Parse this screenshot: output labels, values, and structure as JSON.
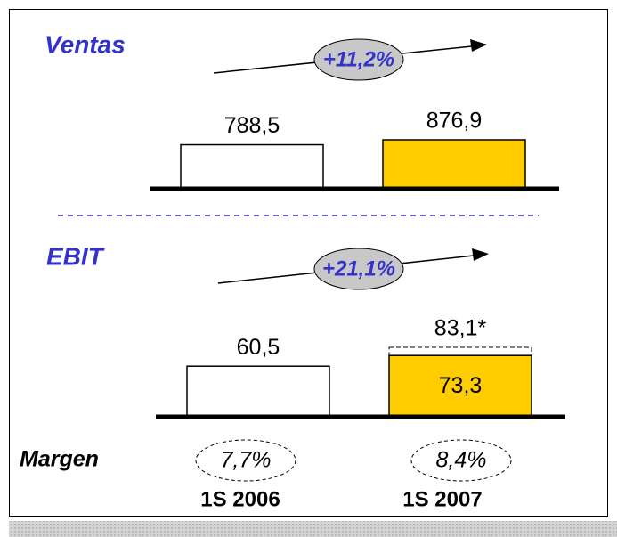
{
  "chart_data": [
    {
      "type": "bar",
      "title": "Ventas",
      "growth": "+11,2%",
      "values": [
        788.5,
        876.9
      ],
      "value_labels": [
        "788,5",
        "876,9"
      ],
      "colors": [
        "#ffffff",
        "#ffcc00"
      ]
    },
    {
      "type": "bar",
      "title": "EBIT",
      "growth": "+21,1%",
      "categories": [
        "1S 2006",
        "1S 2007"
      ],
      "values": [
        60.5,
        73.3
      ],
      "value_labels": [
        "60,5",
        "73,3"
      ],
      "adjusted": 83.1,
      "adjusted_label": "83,1*",
      "colors": [
        "#ffffff",
        "#ffcc00"
      ]
    }
  ],
  "margin": {
    "label": "Margen",
    "values": [
      7.7,
      8.4
    ],
    "value_labels": [
      "7,7%",
      "8,4%"
    ]
  }
}
